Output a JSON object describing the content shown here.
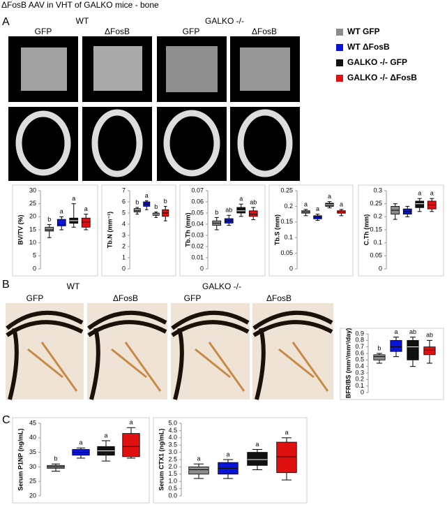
{
  "title": "ΔFosB AAV in VHT of GALKO mice - bone",
  "panel_a": {
    "label": "A",
    "groups": [
      "WT",
      "GALKO -/-"
    ],
    "columns": [
      "GFP",
      "ΔFosB",
      "GFP",
      "ΔFosB"
    ]
  },
  "panel_b": {
    "label": "B",
    "groups": [
      "WT",
      "GALKO -/-"
    ],
    "columns": [
      "GFP",
      "ΔFosB",
      "GFP",
      "ΔFosB"
    ]
  },
  "panel_c": {
    "label": "C"
  },
  "legend": [
    {
      "name": "WT GFP",
      "color": "#8c8c8c"
    },
    {
      "name": "WT ΔFosB",
      "color": "#0a14d8"
    },
    {
      "name": "GALKO -/- GFP",
      "color": "#111111"
    },
    {
      "name": "GALKO -/- ΔFosB",
      "color": "#e01010"
    }
  ],
  "chart_data": [
    {
      "type": "box",
      "y_label": "BV/TV (%)",
      "ylim": [
        0,
        30
      ],
      "yticks": [
        0,
        5,
        10,
        15,
        20,
        25,
        30
      ],
      "boxes": [
        {
          "min": 12,
          "q1": 14.5,
          "median": 15,
          "q3": 16,
          "max": 17,
          "letter": "b"
        },
        {
          "min": 15,
          "q1": 16.5,
          "median": 17,
          "q3": 19,
          "max": 20,
          "letter": "a"
        },
        {
          "min": 16,
          "q1": 17.5,
          "median": 18.5,
          "q3": 19.5,
          "max": 25,
          "letter": "a"
        },
        {
          "min": 15,
          "q1": 16,
          "median": 18,
          "q3": 19.5,
          "max": 21,
          "letter": "a"
        }
      ]
    },
    {
      "type": "box",
      "y_label": "Tb.N (mm⁻¹)",
      "ylim": [
        0,
        7
      ],
      "yticks": [
        0,
        1,
        2,
        3,
        4,
        5,
        6,
        7
      ],
      "boxes": [
        {
          "min": 4.9,
          "q1": 5.1,
          "median": 5.2,
          "q3": 5.4,
          "max": 5.5,
          "letter": "b"
        },
        {
          "min": 5.3,
          "q1": 5.6,
          "median": 5.8,
          "q3": 6,
          "max": 6.1,
          "letter": "a"
        },
        {
          "min": 4.6,
          "q1": 4.8,
          "median": 4.9,
          "q3": 5,
          "max": 5.1,
          "letter": "b"
        },
        {
          "min": 4.3,
          "q1": 4.7,
          "median": 5,
          "q3": 5.3,
          "max": 5.6,
          "letter": "b"
        }
      ]
    },
    {
      "type": "box",
      "y_label": "Tb.Th (mm)",
      "ylim": [
        0,
        0.07
      ],
      "yticks": [
        0,
        0.01,
        0.02,
        0.03,
        0.04,
        0.05,
        0.06,
        0.07
      ],
      "boxes": [
        {
          "min": 0.035,
          "q1": 0.039,
          "median": 0.041,
          "q3": 0.043,
          "max": 0.046,
          "letter": "b"
        },
        {
          "min": 0.039,
          "q1": 0.041,
          "median": 0.043,
          "q3": 0.045,
          "max": 0.048,
          "letter": "ab"
        },
        {
          "min": 0.047,
          "q1": 0.05,
          "median": 0.052,
          "q3": 0.055,
          "max": 0.058,
          "letter": "a"
        },
        {
          "min": 0.044,
          "q1": 0.047,
          "median": 0.049,
          "q3": 0.052,
          "max": 0.055,
          "letter": "ab"
        }
      ]
    },
    {
      "type": "box",
      "y_label": "Tb.S (mm)",
      "ylim": [
        0,
        0.25
      ],
      "yticks": [
        0,
        0.05,
        0.1,
        0.15,
        0.2,
        0.25
      ],
      "boxes": [
        {
          "min": 0.17,
          "q1": 0.178,
          "median": 0.182,
          "q3": 0.186,
          "max": 0.19,
          "letter": "a"
        },
        {
          "min": 0.155,
          "q1": 0.16,
          "median": 0.165,
          "q3": 0.17,
          "max": 0.175,
          "letter": "a"
        },
        {
          "min": 0.195,
          "q1": 0.2,
          "median": 0.205,
          "q3": 0.21,
          "max": 0.215,
          "letter": "a"
        },
        {
          "min": 0.17,
          "q1": 0.178,
          "median": 0.182,
          "q3": 0.186,
          "max": 0.19,
          "letter": "a"
        }
      ]
    },
    {
      "type": "box",
      "y_label": "C.Th (mm)",
      "ylim": [
        0,
        0.3
      ],
      "yticks": [
        0,
        0.05,
        0.1,
        0.15,
        0.2,
        0.25,
        0.3
      ],
      "boxes": [
        {
          "min": 0.19,
          "q1": 0.21,
          "median": 0.225,
          "q3": 0.24,
          "max": 0.25,
          "letter": null
        },
        {
          "min": 0.2,
          "q1": 0.21,
          "median": 0.22,
          "q3": 0.23,
          "max": 0.24,
          "letter": null
        },
        {
          "min": 0.22,
          "q1": 0.235,
          "median": 0.25,
          "q3": 0.26,
          "max": 0.27,
          "letter": "a"
        },
        {
          "min": 0.22,
          "q1": 0.23,
          "median": 0.245,
          "q3": 0.26,
          "max": 0.27,
          "letter": "a"
        }
      ]
    },
    {
      "type": "box",
      "y_label": "BFR/BS (mm³/mm²/day)",
      "ylim": [
        0,
        0.9
      ],
      "yticks": [
        0,
        0.1,
        0.2,
        0.3,
        0.4,
        0.5,
        0.6,
        0.7,
        0.8,
        0.9
      ],
      "boxes": [
        {
          "min": 0.45,
          "q1": 0.5,
          "median": 0.55,
          "q3": 0.58,
          "max": 0.6,
          "letter": "b"
        },
        {
          "min": 0.55,
          "q1": 0.63,
          "median": 0.7,
          "q3": 0.8,
          "max": 0.85,
          "letter": "a"
        },
        {
          "min": 0.4,
          "q1": 0.5,
          "median": 0.7,
          "q3": 0.8,
          "max": 0.85,
          "letter": "ab"
        },
        {
          "min": 0.45,
          "q1": 0.58,
          "median": 0.65,
          "q3": 0.7,
          "max": 0.8,
          "letter": "ab"
        }
      ]
    },
    {
      "type": "box",
      "y_label": "Serum P1NP (ng/mL)",
      "ylim": [
        20,
        45
      ],
      "yticks": [
        20,
        25,
        30,
        35,
        40,
        45
      ],
      "boxes": [
        {
          "min": 28.5,
          "q1": 29.5,
          "median": 30,
          "q3": 30.5,
          "max": 31,
          "letter": "b"
        },
        {
          "min": 33,
          "q1": 34,
          "median": 35,
          "q3": 36,
          "max": 36.5,
          "letter": "a"
        },
        {
          "min": 32,
          "q1": 34,
          "median": 35.5,
          "q3": 37,
          "max": 39,
          "letter": "a"
        },
        {
          "min": 33,
          "q1": 33.5,
          "median": 37,
          "q3": 41.5,
          "max": 43.5,
          "letter": "a"
        }
      ]
    },
    {
      "type": "box",
      "y_label": "Serum CTX1 (ng/mL)",
      "ylim": [
        0,
        5
      ],
      "yticks": [
        {
          "value": 0,
          "label": "0.0"
        },
        0.5,
        {
          "value": 1,
          "label": "1.0"
        },
        1.5,
        {
          "value": 2,
          "label": "2.0"
        },
        2.5,
        {
          "value": 3,
          "label": "3.0"
        },
        3.5,
        {
          "value": 4,
          "label": "4.0"
        },
        4.5,
        {
          "value": 5,
          "label": "5.0"
        }
      ],
      "boxes": [
        {
          "min": 1.2,
          "q1": 1.5,
          "median": 1.8,
          "q3": 2,
          "max": 2.2,
          "letter": "a"
        },
        {
          "min": 1.2,
          "q1": 1.5,
          "median": 1.9,
          "q3": 2.3,
          "max": 2.5,
          "letter": "a"
        },
        {
          "min": 1.8,
          "q1": 2.1,
          "median": 2.5,
          "q3": 3,
          "max": 3.2,
          "letter": "a"
        },
        {
          "min": 1.1,
          "q1": 1.6,
          "median": 2.7,
          "q3": 3.7,
          "max": 4,
          "letter": "a"
        }
      ]
    }
  ]
}
